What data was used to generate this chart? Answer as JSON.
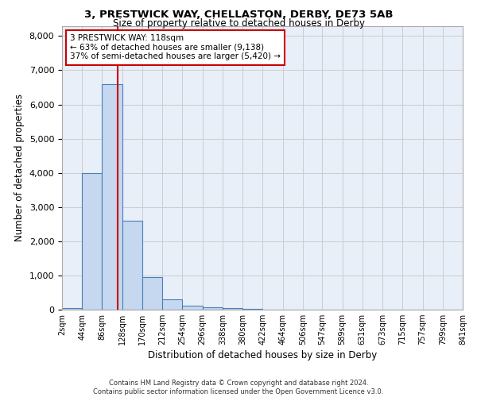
{
  "title1": "3, PRESTWICK WAY, CHELLASTON, DERBY, DE73 5AB",
  "title2": "Size of property relative to detached houses in Derby",
  "xlabel": "Distribution of detached houses by size in Derby",
  "ylabel": "Number of detached properties",
  "bin_labels": [
    "2sqm",
    "44sqm",
    "86sqm",
    "128sqm",
    "170sqm",
    "212sqm",
    "254sqm",
    "296sqm",
    "338sqm",
    "380sqm",
    "422sqm",
    "464sqm",
    "506sqm",
    "547sqm",
    "589sqm",
    "631sqm",
    "673sqm",
    "715sqm",
    "757sqm",
    "799sqm",
    "841sqm"
  ],
  "bin_edges": [
    2,
    44,
    86,
    128,
    170,
    212,
    254,
    296,
    338,
    380,
    422,
    464,
    506,
    547,
    589,
    631,
    673,
    715,
    757,
    799,
    841
  ],
  "bar_heights": [
    50,
    4000,
    6600,
    2600,
    950,
    300,
    120,
    60,
    50,
    15,
    5,
    0,
    0,
    0,
    0,
    0,
    0,
    0,
    0,
    0
  ],
  "bar_color": "#c5d8f0",
  "bar_edge_color": "#4a7fb5",
  "property_size": 118,
  "vline_color": "#cc0000",
  "annotation_line1": "3 PRESTWICK WAY: 118sqm",
  "annotation_line2": "← 63% of detached houses are smaller (9,138)",
  "annotation_line3": "37% of semi-detached houses are larger (5,420) →",
  "annotation_box_color": "#ffffff",
  "annotation_border_color": "#cc0000",
  "ylim": [
    0,
    8300
  ],
  "yticks": [
    0,
    1000,
    2000,
    3000,
    4000,
    5000,
    6000,
    7000,
    8000
  ],
  "grid_color": "#cccccc",
  "background_color": "#e8eff8",
  "footer_text": "Contains HM Land Registry data © Crown copyright and database right 2024.\nContains public sector information licensed under the Open Government Licence v3.0."
}
